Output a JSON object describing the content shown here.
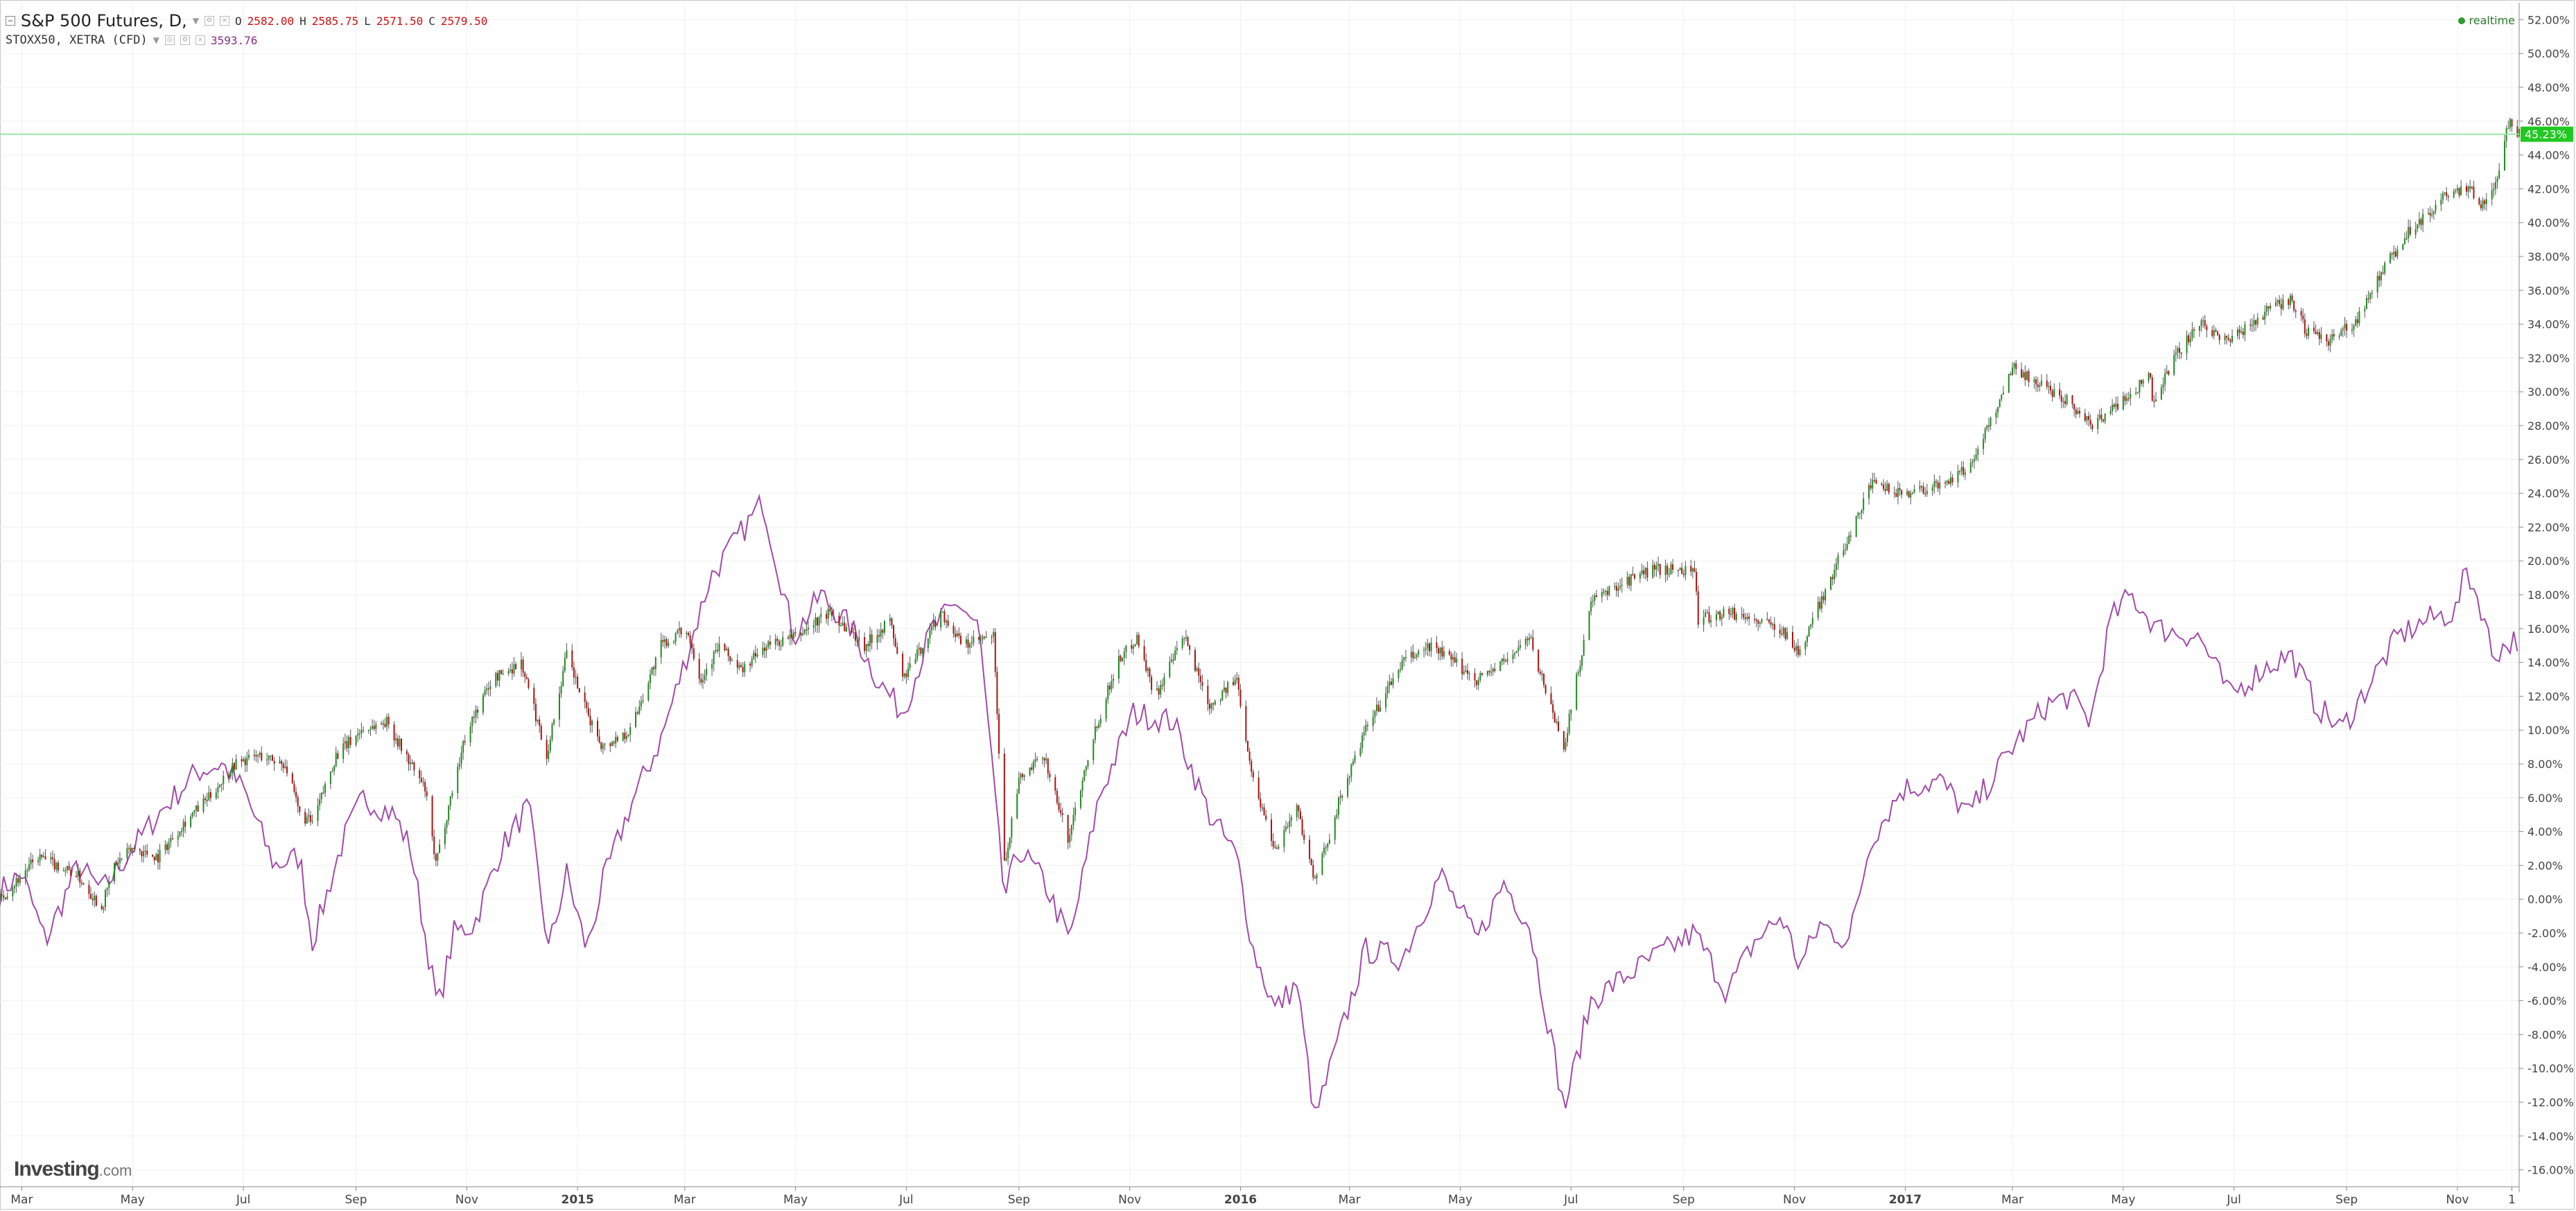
{
  "legend": {
    "symbol": "S&P 500 Futures, D,",
    "ohlc": [
      {
        "key": "O",
        "value": "2582.00"
      },
      {
        "key": "H",
        "value": "2585.75"
      },
      {
        "key": "L",
        "value": "2571.50"
      },
      {
        "key": "C",
        "value": "2579.50"
      }
    ],
    "compare_symbol": "STOXX50, XETRA (CFD)",
    "compare_value": "3593.76"
  },
  "realtime_label": "realtime",
  "logo": {
    "brand": "Investing",
    "suffix": ".com"
  },
  "current_value_label": "45.23%",
  "colors": {
    "up": "#1f8a1f",
    "down": "#b01010",
    "compare_line": "#a24aaa",
    "current_line": "#98e6a8",
    "current_badge": "#22c822",
    "grid": "#f0f0f0",
    "axis_text": "#444444"
  },
  "chart_data": {
    "type": "line",
    "y_unit": "%",
    "ylim": [
      -17,
      53
    ],
    "yticks": [
      "52.00%",
      "50.00%",
      "48.00%",
      "46.00%",
      "44.00%",
      "42.00%",
      "40.00%",
      "38.00%",
      "36.00%",
      "34.00%",
      "32.00%",
      "30.00%",
      "28.00%",
      "26.00%",
      "24.00%",
      "22.00%",
      "20.00%",
      "18.00%",
      "16.00%",
      "14.00%",
      "12.00%",
      "10.00%",
      "8.00%",
      "6.00%",
      "4.00%",
      "2.00%",
      "0.00%",
      "-2.00%",
      "-4.00%",
      "-6.00%",
      "-8.00%",
      "-10.00%",
      "-12.00%",
      "-14.00%",
      "-16.00%"
    ],
    "xlim": [
      "2014-02-17",
      "2017-12-05"
    ],
    "xticks": [
      {
        "label": "Mar",
        "date": "2014-03-01",
        "bold": false
      },
      {
        "label": "May",
        "date": "2014-05-01",
        "bold": false
      },
      {
        "label": "Jul",
        "date": "2014-07-01",
        "bold": false
      },
      {
        "label": "Sep",
        "date": "2014-09-01",
        "bold": false
      },
      {
        "label": "Nov",
        "date": "2014-11-01",
        "bold": false
      },
      {
        "label": "2015",
        "date": "2015-01-01",
        "bold": true
      },
      {
        "label": "Mar",
        "date": "2015-03-01",
        "bold": false
      },
      {
        "label": "May",
        "date": "2015-05-01",
        "bold": false
      },
      {
        "label": "Jul",
        "date": "2015-07-01",
        "bold": false
      },
      {
        "label": "Sep",
        "date": "2015-09-01",
        "bold": false
      },
      {
        "label": "Nov",
        "date": "2015-11-01",
        "bold": false
      },
      {
        "label": "2016",
        "date": "2016-01-01",
        "bold": true
      },
      {
        "label": "Mar",
        "date": "2016-03-01",
        "bold": false
      },
      {
        "label": "May",
        "date": "2016-05-01",
        "bold": false
      },
      {
        "label": "Jul",
        "date": "2016-07-01",
        "bold": false
      },
      {
        "label": "Sep",
        "date": "2016-09-01",
        "bold": false
      },
      {
        "label": "Nov",
        "date": "2016-11-01",
        "bold": false
      },
      {
        "label": "2017",
        "date": "2017-01-01",
        "bold": true
      },
      {
        "label": "Mar",
        "date": "2017-03-01",
        "bold": false
      },
      {
        "label": "May",
        "date": "2017-05-01",
        "bold": false
      },
      {
        "label": "Jul",
        "date": "2017-07-01",
        "bold": false
      },
      {
        "label": "Sep",
        "date": "2017-09-01",
        "bold": false
      },
      {
        "label": "Nov",
        "date": "2017-11-01",
        "bold": false
      },
      {
        "label": "1",
        "date": "2017-12-01",
        "bold": false
      }
    ],
    "current_value": 45.23,
    "series": [
      {
        "name": "S&P 500 Futures, D,",
        "style": "candlestick",
        "points": [
          [
            "2014-02-17",
            0.0
          ],
          [
            "2014-03-10",
            2.5
          ],
          [
            "2014-03-31",
            1.5
          ],
          [
            "2014-04-14",
            -0.5
          ],
          [
            "2014-04-21",
            2.0
          ],
          [
            "2014-05-01",
            3.0
          ],
          [
            "2014-05-15",
            2.5
          ],
          [
            "2014-05-29",
            4.5
          ],
          [
            "2014-06-12",
            6.0
          ],
          [
            "2014-06-26",
            8.0
          ],
          [
            "2014-07-10",
            8.5
          ],
          [
            "2014-07-24",
            8.0
          ],
          [
            "2014-08-01",
            5.0
          ],
          [
            "2014-08-08",
            4.5
          ],
          [
            "2014-08-21",
            8.5
          ],
          [
            "2014-09-04",
            10.0
          ],
          [
            "2014-09-18",
            10.5
          ],
          [
            "2014-10-01",
            8.0
          ],
          [
            "2014-10-09",
            6.5
          ],
          [
            "2014-10-15",
            2.0
          ],
          [
            "2014-10-23",
            6.0
          ],
          [
            "2014-11-01",
            10.0
          ],
          [
            "2014-11-15",
            13.0
          ],
          [
            "2014-12-01",
            14.0
          ],
          [
            "2014-12-15",
            8.5
          ],
          [
            "2014-12-26",
            14.5
          ],
          [
            "2015-01-06",
            11.0
          ],
          [
            "2015-01-15",
            9.0
          ],
          [
            "2015-01-30",
            10.0
          ],
          [
            "2015-02-16",
            15.0
          ],
          [
            "2015-03-02",
            16.0
          ],
          [
            "2015-03-10",
            13.0
          ],
          [
            "2015-03-20",
            15.0
          ],
          [
            "2015-04-01",
            13.5
          ],
          [
            "2015-04-15",
            15.0
          ],
          [
            "2015-05-01",
            15.5
          ],
          [
            "2015-05-20",
            17.0
          ],
          [
            "2015-06-08",
            15.0
          ],
          [
            "2015-06-22",
            16.5
          ],
          [
            "2015-06-29",
            13.0
          ],
          [
            "2015-07-10",
            15.0
          ],
          [
            "2015-07-20",
            17.0
          ],
          [
            "2015-08-01",
            15.0
          ],
          [
            "2015-08-18",
            15.5
          ],
          [
            "2015-08-24",
            2.0
          ],
          [
            "2015-09-01",
            7.0
          ],
          [
            "2015-09-15",
            8.5
          ],
          [
            "2015-09-28",
            3.5
          ],
          [
            "2015-10-10",
            9.0
          ],
          [
            "2015-10-25",
            14.0
          ],
          [
            "2015-11-05",
            15.5
          ],
          [
            "2015-11-15",
            12.0
          ],
          [
            "2015-12-01",
            15.5
          ],
          [
            "2015-12-15",
            11.5
          ],
          [
            "2015-12-30",
            13.0
          ],
          [
            "2016-01-08",
            7.0
          ],
          [
            "2016-01-20",
            3.0
          ],
          [
            "2016-02-01",
            5.5
          ],
          [
            "2016-02-11",
            1.0
          ],
          [
            "2016-02-25",
            6.0
          ],
          [
            "2016-03-10",
            10.0
          ],
          [
            "2016-03-30",
            14.0
          ],
          [
            "2016-04-15",
            15.0
          ],
          [
            "2016-05-10",
            13.0
          ],
          [
            "2016-05-25",
            14.0
          ],
          [
            "2016-06-08",
            15.5
          ],
          [
            "2016-06-24",
            10.0
          ],
          [
            "2016-06-27",
            9.0
          ],
          [
            "2016-07-12",
            17.5
          ],
          [
            "2016-07-25",
            18.5
          ],
          [
            "2016-08-15",
            19.5
          ],
          [
            "2016-09-07",
            19.5
          ],
          [
            "2016-09-09",
            16.5
          ],
          [
            "2016-09-25",
            17.0
          ],
          [
            "2016-10-10",
            16.5
          ],
          [
            "2016-10-25",
            16.0
          ],
          [
            "2016-11-04",
            14.5
          ],
          [
            "2016-11-09",
            16.0
          ],
          [
            "2016-11-25",
            20.0
          ],
          [
            "2016-12-13",
            24.5
          ],
          [
            "2016-12-30",
            24.0
          ],
          [
            "2017-01-20",
            24.5
          ],
          [
            "2017-02-05",
            25.5
          ],
          [
            "2017-02-20",
            29.0
          ],
          [
            "2017-03-01",
            31.5
          ],
          [
            "2017-03-15",
            30.5
          ],
          [
            "2017-04-01",
            29.5
          ],
          [
            "2017-04-13",
            28.0
          ],
          [
            "2017-05-01",
            29.5
          ],
          [
            "2017-05-16",
            31.0
          ],
          [
            "2017-05-17",
            29.5
          ],
          [
            "2017-06-01",
            32.5
          ],
          [
            "2017-06-12",
            34.0
          ],
          [
            "2017-06-29",
            33.0
          ],
          [
            "2017-07-15",
            34.5
          ],
          [
            "2017-08-01",
            35.5
          ],
          [
            "2017-08-10",
            33.5
          ],
          [
            "2017-08-21",
            33.0
          ],
          [
            "2017-09-05",
            34.0
          ],
          [
            "2017-09-20",
            37.0
          ],
          [
            "2017-10-05",
            39.5
          ],
          [
            "2017-10-25",
            41.5
          ],
          [
            "2017-11-08",
            42.0
          ],
          [
            "2017-11-15",
            41.0
          ],
          [
            "2017-11-25",
            43.0
          ],
          [
            "2017-11-28",
            45.5
          ],
          [
            "2017-11-30",
            46.0
          ],
          [
            "2017-12-05",
            45.23
          ]
        ]
      },
      {
        "name": "STOXX50, XETRA (CFD)",
        "style": "line",
        "points": [
          [
            "2014-02-17",
            0.5
          ],
          [
            "2014-03-01",
            1.5
          ],
          [
            "2014-03-14",
            -2.5
          ],
          [
            "2014-04-01",
            2.0
          ],
          [
            "2014-04-14",
            0.5
          ],
          [
            "2014-05-01",
            3.0
          ],
          [
            "2014-05-15",
            5.0
          ],
          [
            "2014-06-05",
            7.5
          ],
          [
            "2014-06-19",
            8.0
          ],
          [
            "2014-07-01",
            6.5
          ],
          [
            "2014-07-18",
            2.0
          ],
          [
            "2014-08-01",
            2.5
          ],
          [
            "2014-08-08",
            -2.5
          ],
          [
            "2014-08-25",
            3.5
          ],
          [
            "2014-09-05",
            6.0
          ],
          [
            "2014-09-22",
            5.0
          ],
          [
            "2014-10-01",
            3.0
          ],
          [
            "2014-10-16",
            -6.5
          ],
          [
            "2014-10-25",
            -2.0
          ],
          [
            "2014-11-05",
            -1.5
          ],
          [
            "2014-11-20",
            3.0
          ],
          [
            "2014-12-05",
            5.5
          ],
          [
            "2014-12-16",
            -3.0
          ],
          [
            "2014-12-26",
            1.5
          ],
          [
            "2015-01-06",
            -3.0
          ],
          [
            "2015-01-15",
            1.0
          ],
          [
            "2015-01-30",
            5.5
          ],
          [
            "2015-02-16",
            9.5
          ],
          [
            "2015-03-01",
            14.0
          ],
          [
            "2015-03-15",
            19.0
          ],
          [
            "2015-04-13",
            23.5
          ],
          [
            "2015-04-30",
            15.5
          ],
          [
            "2015-05-15",
            18.0
          ],
          [
            "2015-06-01",
            16.0
          ],
          [
            "2015-06-15",
            13.0
          ],
          [
            "2015-06-29",
            11.0
          ],
          [
            "2015-07-15",
            16.0
          ],
          [
            "2015-07-30",
            17.5
          ],
          [
            "2015-08-10",
            16.0
          ],
          [
            "2015-08-24",
            0.0
          ],
          [
            "2015-09-01",
            3.0
          ],
          [
            "2015-09-15",
            1.0
          ],
          [
            "2015-09-29",
            -2.5
          ],
          [
            "2015-10-15",
            6.0
          ],
          [
            "2015-11-03",
            11.0
          ],
          [
            "2015-11-25",
            10.5
          ],
          [
            "2015-12-15",
            5.0
          ],
          [
            "2015-12-30",
            2.5
          ],
          [
            "2016-01-08",
            -3.0
          ],
          [
            "2016-01-20",
            -6.5
          ],
          [
            "2016-02-01",
            -5.0
          ],
          [
            "2016-02-11",
            -13.0
          ],
          [
            "2016-02-25",
            -8.0
          ],
          [
            "2016-03-10",
            -3.0
          ],
          [
            "2016-03-30",
            -3.5
          ],
          [
            "2016-04-20",
            1.5
          ],
          [
            "2016-05-10",
            -2.5
          ],
          [
            "2016-05-25",
            1.0
          ],
          [
            "2016-06-08",
            -1.5
          ],
          [
            "2016-06-24",
            -10.5
          ],
          [
            "2016-06-27",
            -12.5
          ],
          [
            "2016-07-12",
            -6.0
          ],
          [
            "2016-07-25",
            -5.0
          ],
          [
            "2016-08-15",
            -3.5
          ],
          [
            "2016-09-07",
            -2.0
          ],
          [
            "2016-09-25",
            -5.5
          ],
          [
            "2016-10-10",
            -2.5
          ],
          [
            "2016-10-25",
            -1.0
          ],
          [
            "2016-11-04",
            -4.0
          ],
          [
            "2016-11-15",
            -1.5
          ],
          [
            "2016-12-01",
            -2.5
          ],
          [
            "2016-12-13",
            3.5
          ],
          [
            "2016-12-30",
            6.5
          ],
          [
            "2017-01-20",
            7.0
          ],
          [
            "2017-02-05",
            5.0
          ],
          [
            "2017-02-20",
            7.5
          ],
          [
            "2017-03-01",
            9.0
          ],
          [
            "2017-03-20",
            11.5
          ],
          [
            "2017-04-01",
            12.0
          ],
          [
            "2017-04-13",
            10.5
          ],
          [
            "2017-04-24",
            16.5
          ],
          [
            "2017-05-05",
            18.0
          ],
          [
            "2017-05-20",
            16.0
          ],
          [
            "2017-06-12",
            15.5
          ],
          [
            "2017-06-29",
            12.0
          ],
          [
            "2017-07-15",
            13.5
          ],
          [
            "2017-08-01",
            14.5
          ],
          [
            "2017-08-15",
            11.5
          ],
          [
            "2017-08-29",
            10.0
          ],
          [
            "2017-09-15",
            13.0
          ],
          [
            "2017-09-29",
            15.5
          ],
          [
            "2017-10-15",
            16.5
          ],
          [
            "2017-10-31",
            17.0
          ],
          [
            "2017-11-06",
            19.5
          ],
          [
            "2017-11-15",
            17.0
          ],
          [
            "2017-11-20",
            14.5
          ],
          [
            "2017-11-28",
            15.0
          ],
          [
            "2017-12-05",
            15.5
          ]
        ]
      }
    ]
  }
}
